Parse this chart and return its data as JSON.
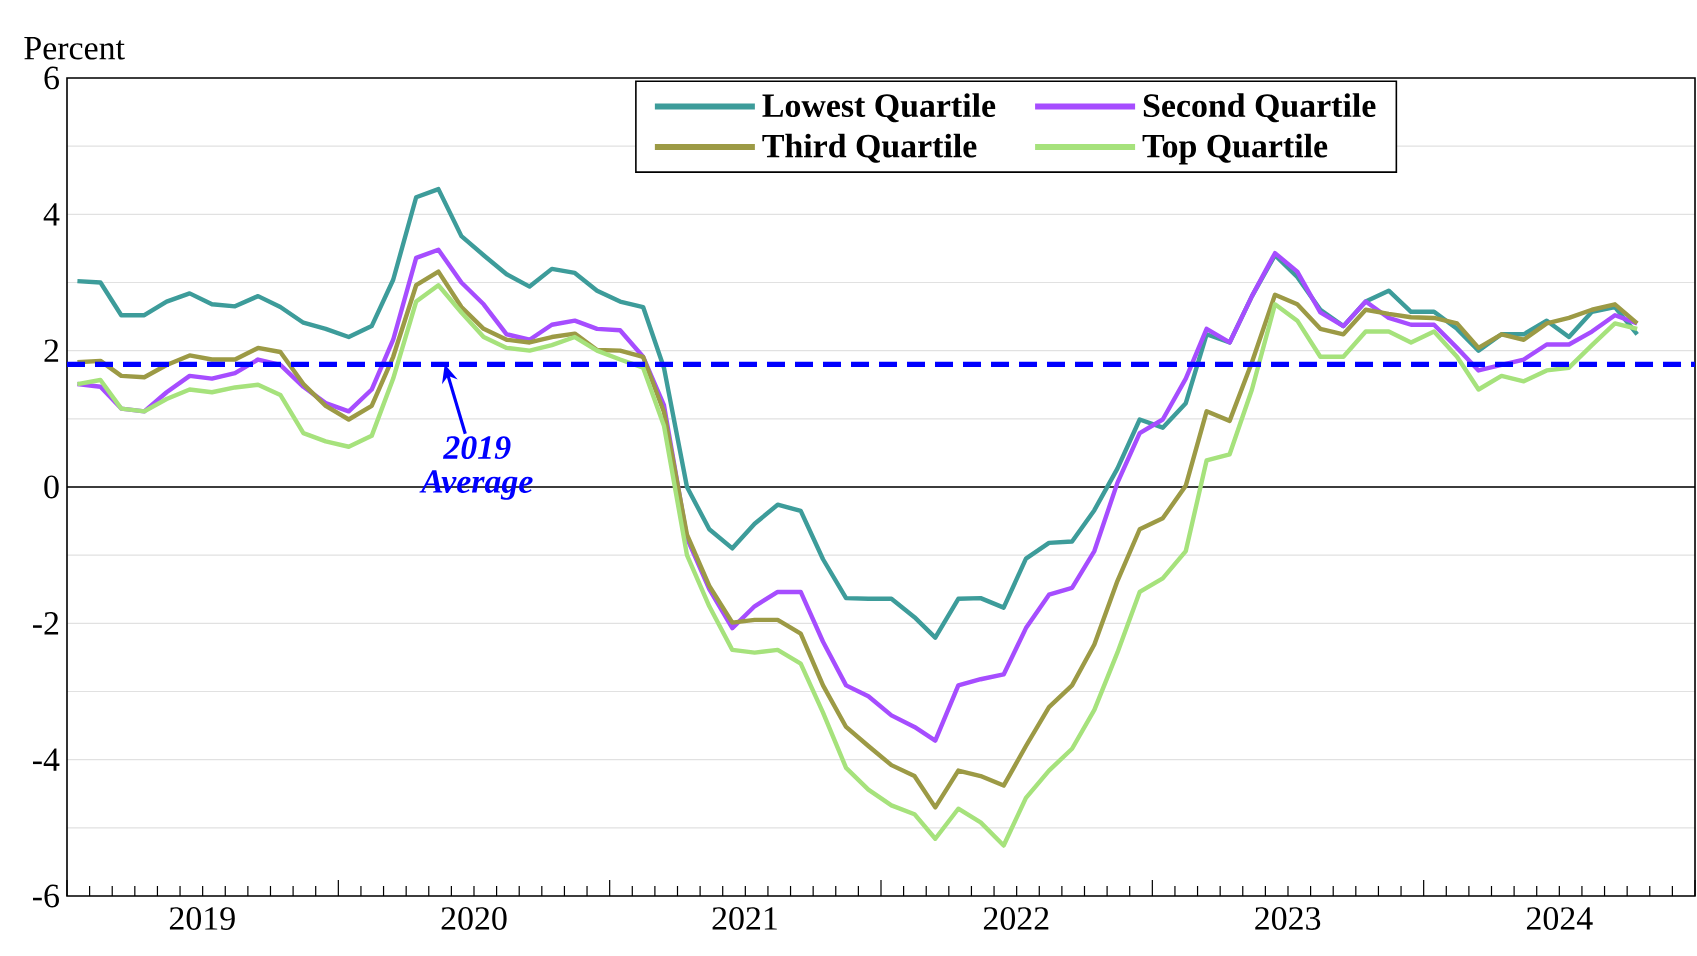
{
  "chart_data": {
    "type": "line",
    "ylabel": "Percent",
    "x": [
      "2019-01-15",
      "2019-02-15",
      "2019-03-15",
      "2019-04-15",
      "2019-05-15",
      "2019-06-15",
      "2019-07-15",
      "2019-08-15",
      "2019-09-15",
      "2019-10-15",
      "2019-11-15",
      "2019-12-15",
      "2020-01-15",
      "2020-02-15",
      "2020-03-15",
      "2020-04-15",
      "2020-05-15",
      "2020-06-15",
      "2020-07-15",
      "2020-08-15",
      "2020-09-15",
      "2020-10-15",
      "2020-11-15",
      "2020-12-15",
      "2021-01-15",
      "2021-02-15",
      "2021-03-15",
      "2021-04-15",
      "2021-05-15",
      "2021-06-15",
      "2021-07-15",
      "2021-08-15",
      "2021-09-15",
      "2021-10-15",
      "2021-11-15",
      "2021-12-15",
      "2022-01-15",
      "2022-02-15",
      "2022-03-15",
      "2022-04-15",
      "2022-05-15",
      "2022-06-15",
      "2022-07-15",
      "2022-08-15",
      "2022-09-15",
      "2022-10-15",
      "2022-11-15",
      "2022-12-15",
      "2023-01-15",
      "2023-02-15",
      "2023-03-15",
      "2023-04-15",
      "2023-05-15",
      "2023-06-15",
      "2023-07-15",
      "2023-08-15",
      "2023-09-15",
      "2023-10-15",
      "2023-11-15",
      "2023-12-15",
      "2024-01-15",
      "2024-02-15",
      "2024-03-15",
      "2024-04-15",
      "2024-05-15",
      "2024-06-15",
      "2024-07-15",
      "2024-08-15",
      "2024-09-15",
      "2024-10-15"
    ],
    "series": [
      {
        "name": "Lowest Quartile",
        "color": "#3d9c9a",
        "values": [
          3.02,
          3.0,
          2.52,
          2.52,
          2.72,
          2.84,
          2.68,
          2.65,
          2.8,
          2.64,
          2.41,
          2.32,
          2.2,
          2.36,
          3.04,
          4.25,
          4.37,
          3.68,
          3.4,
          3.12,
          2.94,
          3.2,
          3.14,
          2.88,
          2.72,
          2.64,
          1.75,
          0.0,
          -0.62,
          -0.9,
          -0.54,
          -0.26,
          -0.35,
          -1.06,
          -1.63,
          -1.64,
          -1.64,
          -1.91,
          -2.21,
          -1.64,
          -1.63,
          -1.77,
          -1.05,
          -0.82,
          -0.8,
          -0.34,
          0.27,
          0.99,
          0.87,
          1.23,
          2.24,
          2.12,
          2.8,
          3.4,
          3.08,
          2.6,
          2.36,
          2.72,
          2.88,
          2.57,
          2.57,
          2.32,
          2.0,
          2.24,
          2.24,
          2.44,
          2.2,
          2.57,
          2.64,
          2.24
        ]
      },
      {
        "name": "Second Quartile",
        "color": "#a64dff",
        "values": [
          1.51,
          1.47,
          1.15,
          1.11,
          1.39,
          1.63,
          1.59,
          1.67,
          1.87,
          1.79,
          1.47,
          1.23,
          1.11,
          1.43,
          2.16,
          3.36,
          3.48,
          3.0,
          2.68,
          2.24,
          2.16,
          2.38,
          2.44,
          2.32,
          2.3,
          1.91,
          1.2,
          -0.75,
          -1.5,
          -2.07,
          -1.75,
          -1.54,
          -1.54,
          -2.27,
          -2.91,
          -3.07,
          -3.35,
          -3.52,
          -3.72,
          -2.91,
          -2.82,
          -2.75,
          -2.07,
          -1.58,
          -1.48,
          -0.94,
          0.06,
          0.79,
          0.99,
          1.59,
          2.32,
          2.12,
          2.8,
          3.43,
          3.16,
          2.56,
          2.36,
          2.72,
          2.48,
          2.38,
          2.38,
          2.04,
          1.71,
          1.79,
          1.87,
          2.09,
          2.09,
          2.28,
          2.52,
          2.4
        ]
      },
      {
        "name": "Third Quartile",
        "color": "#9c9a45",
        "values": [
          1.83,
          1.85,
          1.63,
          1.61,
          1.79,
          1.93,
          1.87,
          1.87,
          2.04,
          1.98,
          1.51,
          1.19,
          0.99,
          1.19,
          1.91,
          2.96,
          3.16,
          2.64,
          2.32,
          2.16,
          2.12,
          2.2,
          2.25,
          2.01,
          2.0,
          1.91,
          1.1,
          -0.7,
          -1.45,
          -1.99,
          -1.95,
          -1.95,
          -2.15,
          -2.91,
          -3.52,
          -3.8,
          -4.08,
          -4.24,
          -4.7,
          -4.16,
          -4.24,
          -4.38,
          -3.8,
          -3.23,
          -2.91,
          -2.31,
          -1.38,
          -0.62,
          -0.46,
          0.02,
          1.11,
          0.97,
          1.83,
          2.82,
          2.68,
          2.32,
          2.24,
          2.6,
          2.54,
          2.49,
          2.48,
          2.4,
          2.04,
          2.24,
          2.16,
          2.4,
          2.48,
          2.6,
          2.68,
          2.4
        ]
      },
      {
        "name": "Top Quartile",
        "color": "#a6e27c",
        "values": [
          1.51,
          1.57,
          1.15,
          1.11,
          1.29,
          1.43,
          1.39,
          1.46,
          1.5,
          1.35,
          0.79,
          0.67,
          0.59,
          0.75,
          1.59,
          2.72,
          2.96,
          2.56,
          2.2,
          2.04,
          2.0,
          2.08,
          2.2,
          2.0,
          1.87,
          1.75,
          0.9,
          -1.0,
          -1.75,
          -2.39,
          -2.43,
          -2.39,
          -2.59,
          -3.31,
          -4.12,
          -4.44,
          -4.67,
          -4.8,
          -5.16,
          -4.72,
          -4.92,
          -5.26,
          -4.56,
          -4.16,
          -3.84,
          -3.27,
          -2.43,
          -1.54,
          -1.34,
          -0.94,
          0.39,
          0.48,
          1.43,
          2.68,
          2.44,
          1.91,
          1.91,
          2.28,
          2.28,
          2.12,
          2.28,
          1.91,
          1.43,
          1.63,
          1.55,
          1.71,
          1.75,
          2.08,
          2.4,
          2.32
        ]
      }
    ],
    "xlim": [
      "2019-01-01",
      "2025-01-01"
    ],
    "xticks": [
      {
        "value": "2019-01-01",
        "label": null
      },
      {
        "value": "2020-01-01",
        "label": null
      },
      {
        "value": "2021-01-01",
        "label": null
      },
      {
        "value": "2022-01-01",
        "label": null
      },
      {
        "value": "2023-01-01",
        "label": null
      },
      {
        "value": "2024-01-01",
        "label": null
      },
      {
        "value": "2025-01-01",
        "label": null
      },
      {
        "value": "2019-07-02",
        "label": "2019"
      },
      {
        "value": "2020-07-02",
        "label": "2020"
      },
      {
        "value": "2021-07-02",
        "label": "2021"
      },
      {
        "value": "2022-07-02",
        "label": "2022"
      },
      {
        "value": "2023-07-02",
        "label": "2023"
      },
      {
        "value": "2024-07-02",
        "label": "2024"
      }
    ],
    "ylim": [
      -6,
      6
    ],
    "yticks": [
      -6,
      {
        "value": -5,
        "label": null
      },
      -4,
      {
        "value": -3,
        "label": null
      },
      -2,
      {
        "value": -1,
        "label": null
      },
      0,
      {
        "value": 1,
        "label": null
      },
      2,
      {
        "value": 3,
        "label": null
      },
      4,
      {
        "value": 5,
        "label": null
      },
      6
    ],
    "grid": "y",
    "legend": "top",
    "line_style": "solid",
    "marker": "none",
    "ref_lines": [
      {
        "axis": "y",
        "value": 0,
        "color": "#000000",
        "line_style": "solid"
      },
      {
        "axis": "y",
        "value": 1.8,
        "label": "2019 Average",
        "color": "#0000ff",
        "line_style": "dashed"
      }
    ]
  }
}
